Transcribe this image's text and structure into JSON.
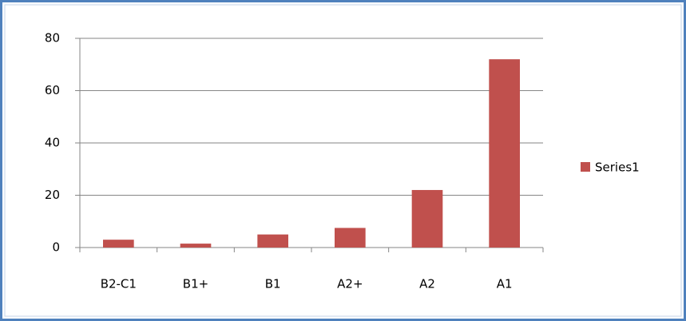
{
  "chart_data": {
    "type": "bar",
    "categories": [
      "B2-C1",
      "B1+",
      "B1",
      "A2+",
      "A2",
      "A1"
    ],
    "series": [
      {
        "name": "Series1",
        "color": "#c0504d",
        "values": [
          3,
          1.5,
          5,
          7.5,
          22,
          72
        ]
      }
    ],
    "ylim": [
      0,
      80
    ],
    "yticks": [
      0,
      20,
      40,
      60,
      80
    ],
    "grid": true,
    "legend": "right"
  }
}
